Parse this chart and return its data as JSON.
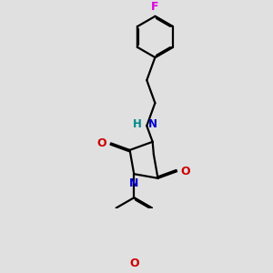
{
  "background_color": "#e0e0e0",
  "line_color": "#000000",
  "N_color": "#0000cc",
  "O_color": "#cc0000",
  "F_color": "#dd00dd",
  "NH_color": "#008888",
  "bond_lw": 1.6,
  "dbo": 0.038,
  "figsize": [
    3.0,
    3.0
  ],
  "dpi": 100,
  "xlim": [
    -2.8,
    2.2
  ],
  "ylim": [
    -3.8,
    3.2
  ]
}
